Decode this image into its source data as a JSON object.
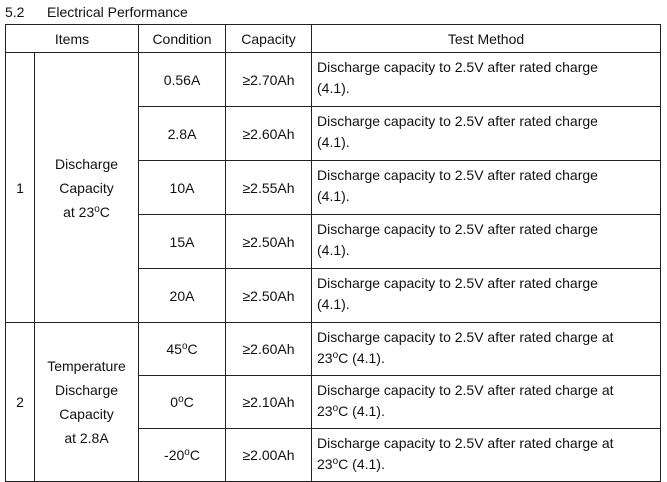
{
  "section": {
    "number": "5.2",
    "title": "Electrical Performance"
  },
  "headers": {
    "items": "Items",
    "condition": "Condition",
    "capacity": "Capacity",
    "method": "Test Method"
  },
  "groups": [
    {
      "no": "1",
      "name_lines": [
        "Discharge",
        "Capacity",
        "at 23"
      ],
      "name_suffix": "C",
      "rows": [
        {
          "condition": "0.56A",
          "capacity": "≥2.70Ah",
          "method_line1": "Discharge capacity to 2.5V after rated charge",
          "method_line2": "(4.1)."
        },
        {
          "condition": "2.8A",
          "capacity": "≥2.60Ah",
          "method_line1": "Discharge capacity to 2.5V after rated charge",
          "method_line2": "(4.1)."
        },
        {
          "condition": "10A",
          "capacity": "≥2.55Ah",
          "method_line1": "Discharge capacity to 2.5V after rated charge",
          "method_line2": "(4.1)."
        },
        {
          "condition": "15A",
          "capacity": "≥2.50Ah",
          "method_line1": "Discharge capacity to 2.5V after rated charge",
          "method_line2": "(4.1)."
        },
        {
          "condition": "20A",
          "capacity": "≥2.50Ah",
          "method_line1": "Discharge capacity to 2.5V after rated charge",
          "method_line2": "(4.1)."
        }
      ]
    },
    {
      "no": "2",
      "name_lines": [
        "Temperature",
        "Discharge",
        "Capacity",
        "at 2.8A"
      ],
      "rows": [
        {
          "condition": "45",
          "condition_unit": "C",
          "capacity": "≥2.60Ah",
          "method_line1": "Discharge capacity to 2.5V after rated charge at",
          "method_line2_pre": "23",
          "method_line2_post": "C (4.1)."
        },
        {
          "condition": "0",
          "condition_unit": "C",
          "capacity": "≥2.10Ah",
          "method_line1": "Discharge capacity to 2.5V after rated charge at",
          "method_line2_pre": "23",
          "method_line2_post": "C (4.1)."
        },
        {
          "condition": "-20",
          "condition_unit": "C",
          "capacity": "≥2.00Ah",
          "method_line1": "Discharge capacity to 2.5V after rated charge at",
          "method_line2_pre": "23",
          "method_line2_post": "C (4.1)."
        }
      ]
    }
  ],
  "degree_symbol": "o"
}
